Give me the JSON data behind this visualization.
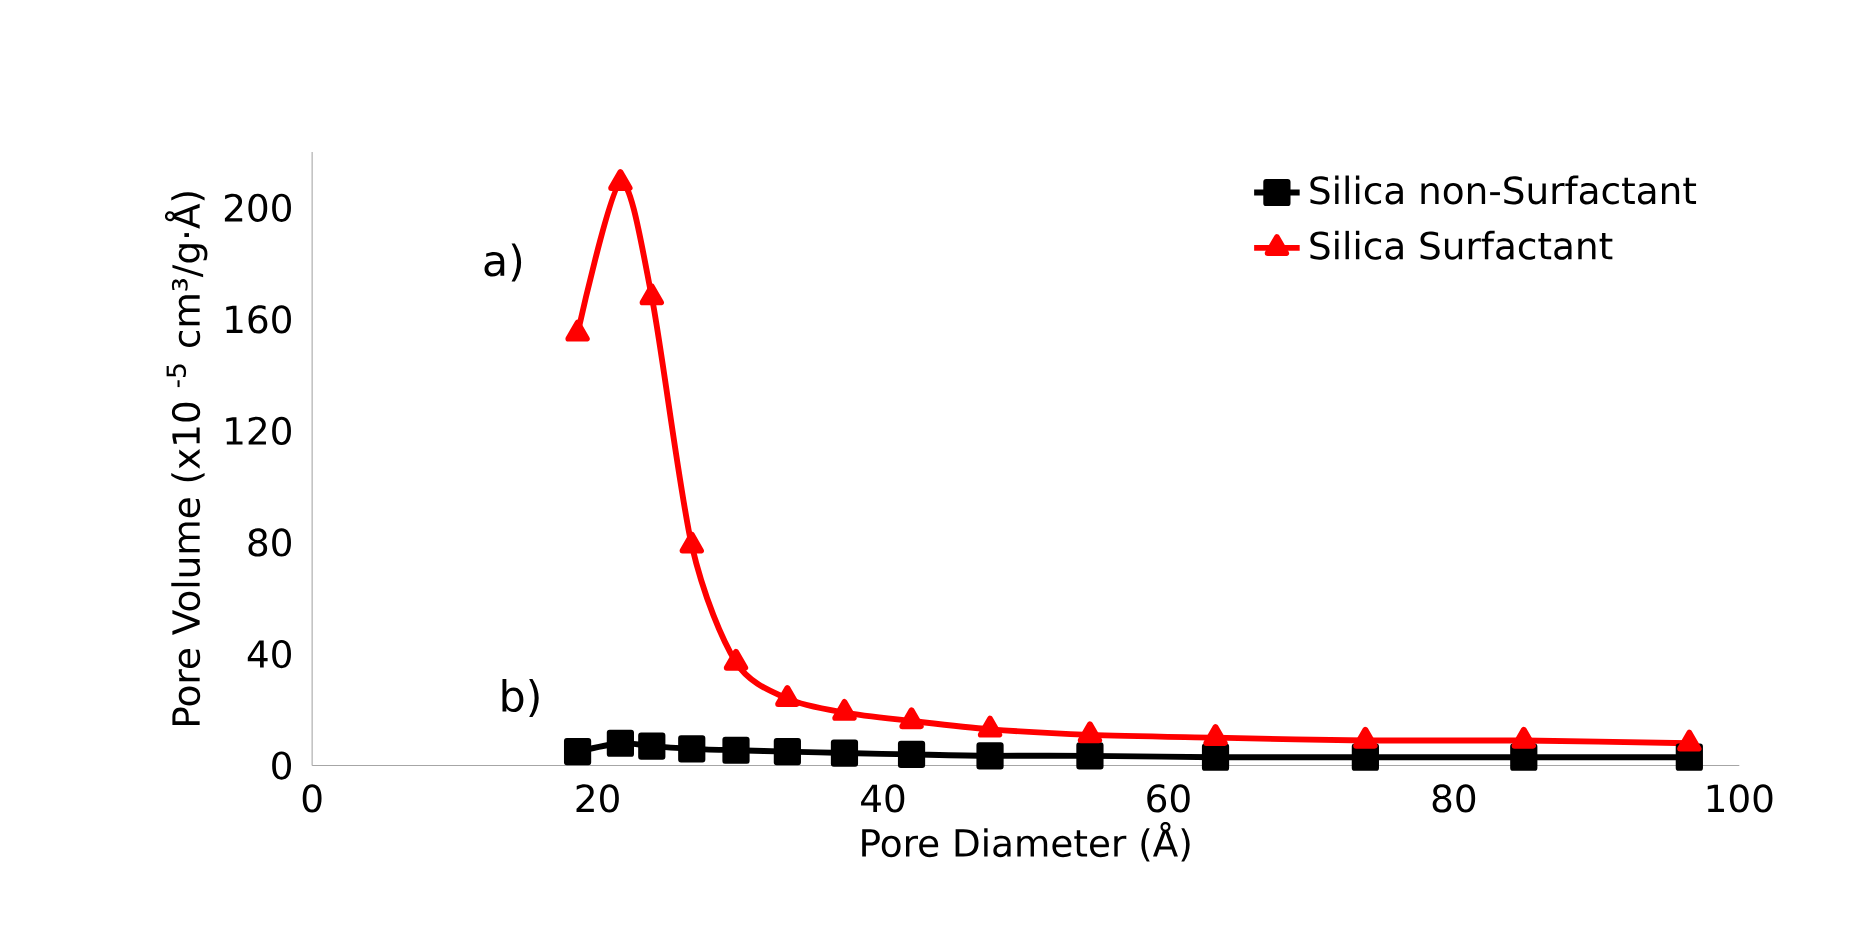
{
  "chart_data": {
    "type": "line",
    "xlabel": "Pore Diameter (Å)",
    "ylabel": "Pore Volume (x10 $^{-5}$ cm³/g·Å)",
    "xlim": [
      0,
      100
    ],
    "xticks": [
      0,
      20,
      40,
      60,
      80,
      100
    ],
    "ylim": [
      0,
      220
    ],
    "yticks": [
      0,
      40,
      80,
      120,
      160,
      200
    ],
    "grid": false,
    "legend": "top right",
    "line_style": "solid",
    "series": [
      {
        "name": "Silica non-Surfactant",
        "color": "#000000",
        "marker": "square",
        "x": [
          18.6,
          21.6,
          23.8,
          26.6,
          29.7,
          33.3,
          37.3,
          42.0,
          47.5,
          54.5,
          63.3,
          73.8,
          84.9,
          96.5
        ],
        "values": [
          5,
          8,
          7,
          6,
          5.5,
          5,
          4.5,
          4,
          3.5,
          3.5,
          3,
          3,
          3,
          3
        ]
      },
      {
        "name": "Silica Surfactant",
        "color": "#ff0000",
        "marker": "triangle",
        "x": [
          18.6,
          21.6,
          23.8,
          26.6,
          29.7,
          33.3,
          37.3,
          42.0,
          47.5,
          54.5,
          63.3,
          73.8,
          84.9,
          96.5
        ],
        "values": [
          155,
          209,
          168,
          79,
          37,
          24,
          19,
          16,
          13,
          11,
          10,
          9,
          9,
          8
        ]
      }
    ],
    "annotations": [
      "a)",
      "b)"
    ]
  }
}
